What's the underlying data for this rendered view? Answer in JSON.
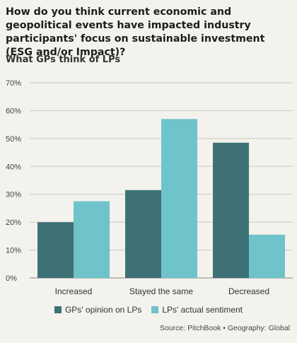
{
  "title": "How do you think current economic and geopolitical events have impacted industry participants' focus on sustainable investment (ESG and/or Impact)?",
  "subtitle": "What GPs think of LPs",
  "source": "Source: PitchBook • Geography: Global",
  "colors": {
    "gp": "#3e7176",
    "lp": "#6fc3ca",
    "grid": "#c9c9c4"
  },
  "chart_data": {
    "type": "bar",
    "categories": [
      "Increased",
      "Stayed the same",
      "Decreased"
    ],
    "series": [
      {
        "name": "GPs' opinion on LPs",
        "values": [
          20,
          31.5,
          48.5
        ]
      },
      {
        "name": "LPs' actual sentiment",
        "values": [
          27.5,
          57,
          15.5
        ]
      }
    ],
    "ylim": [
      0,
      70
    ],
    "yticks": [
      "0%",
      "10%",
      "20%",
      "30%",
      "40%",
      "50%",
      "60%",
      "70%"
    ],
    "grid": true,
    "legend": "bottom"
  }
}
